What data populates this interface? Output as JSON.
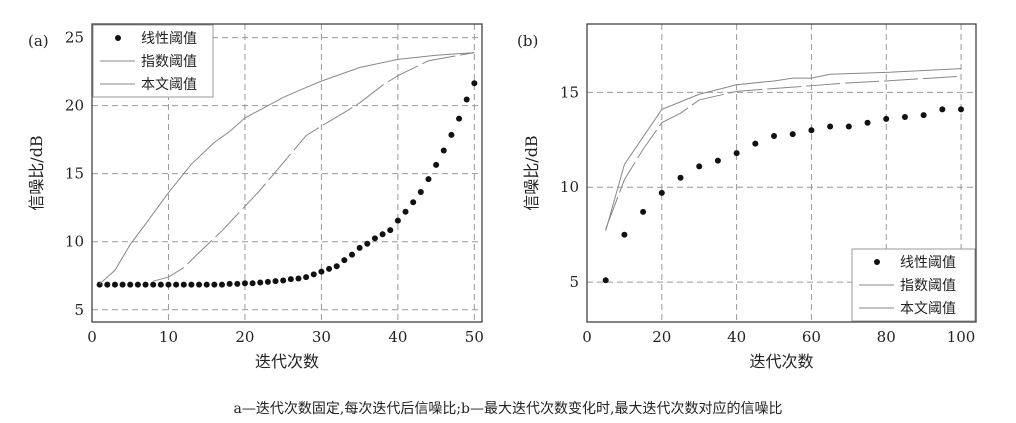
{
  "caption": "a—迭代次数固定,每次迭代后信噪比;b—最大迭代次数变化时,最大迭代次数对应的信噪比",
  "chart_data": [
    {
      "type": "line",
      "panel_label": "(a)",
      "xlabel": "迭代次数",
      "ylabel": "信噪比/dB",
      "xlim": [
        0,
        51
      ],
      "ylim": [
        4.1,
        26
      ],
      "xticks": [
        0,
        10,
        20,
        30,
        40,
        50
      ],
      "yticks": [
        5,
        10,
        15,
        20,
        25
      ],
      "grid": true,
      "legend": "top-left",
      "series": [
        {
          "name": "线性阈值",
          "style": "points",
          "x": [
            1,
            2,
            3,
            4,
            5,
            6,
            7,
            8,
            9,
            10,
            11,
            12,
            13,
            14,
            15,
            16,
            17,
            18,
            19,
            20,
            21,
            22,
            23,
            24,
            25,
            26,
            27,
            28,
            29,
            30,
            31,
            32,
            33,
            34,
            35,
            36,
            37,
            38,
            39,
            40,
            41,
            42,
            43,
            44,
            45,
            46,
            47,
            48,
            49,
            50
          ],
          "y": [
            6.85,
            6.85,
            6.85,
            6.85,
            6.85,
            6.85,
            6.85,
            6.85,
            6.85,
            6.85,
            6.85,
            6.85,
            6.85,
            6.85,
            6.85,
            6.85,
            6.85,
            6.9,
            6.9,
            6.95,
            6.95,
            7.0,
            7.05,
            7.1,
            7.15,
            7.25,
            7.3,
            7.4,
            7.6,
            7.8,
            8.0,
            8.2,
            8.65,
            9.05,
            9.55,
            9.85,
            10.25,
            10.55,
            10.85,
            11.55,
            12.2,
            12.9,
            13.65,
            14.6,
            15.65,
            16.7,
            17.85,
            19.05,
            20.45,
            21.65
          ]
        },
        {
          "name": "指数阈值",
          "style": "solid",
          "x": [
            1,
            3,
            5,
            7,
            10,
            13,
            16,
            18,
            20,
            23,
            25,
            27,
            30,
            35,
            40,
            45,
            50
          ],
          "y": [
            6.9,
            7.9,
            9.8,
            11.3,
            13.6,
            15.7,
            17.3,
            18.1,
            19.1,
            20.0,
            20.6,
            21.1,
            21.8,
            22.8,
            23.4,
            23.7,
            23.9
          ]
        },
        {
          "name": "本文阈值",
          "style": "dashed",
          "x": [
            8,
            10,
            12,
            14,
            17,
            20,
            22,
            25,
            28,
            30,
            33,
            35,
            38,
            40,
            44,
            47,
            50
          ],
          "y": [
            7.1,
            7.4,
            8.1,
            9.2,
            10.8,
            12.6,
            13.8,
            15.8,
            17.8,
            18.5,
            19.5,
            20.2,
            21.5,
            22.2,
            23.3,
            23.6,
            23.9
          ]
        }
      ]
    },
    {
      "type": "line",
      "panel_label": "(b)",
      "xlabel": "迭代次数",
      "ylabel": "信噪比/dB",
      "xlim": [
        0,
        104
      ],
      "ylim": [
        2.9,
        18.6
      ],
      "xticks": [
        0,
        20,
        40,
        60,
        80,
        100
      ],
      "yticks": [
        5,
        10,
        15
      ],
      "grid": true,
      "legend": "bottom-right",
      "series": [
        {
          "name": "线性阈值",
          "style": "points",
          "x": [
            5,
            10,
            15,
            20,
            25,
            30,
            35,
            40,
            45,
            50,
            55,
            60,
            65,
            70,
            75,
            80,
            85,
            90,
            95,
            100
          ],
          "y": [
            5.1,
            7.5,
            8.7,
            9.7,
            10.5,
            11.1,
            11.4,
            11.8,
            12.3,
            12.7,
            12.8,
            13.0,
            13.2,
            13.2,
            13.4,
            13.6,
            13.7,
            13.8,
            14.1,
            14.1
          ]
        },
        {
          "name": "指数阈值",
          "style": "solid",
          "x": [
            5,
            10,
            20,
            30,
            40,
            50,
            55,
            60,
            65,
            80,
            100
          ],
          "y": [
            7.7,
            11.2,
            14.1,
            14.9,
            15.4,
            15.6,
            15.75,
            15.75,
            15.95,
            16.05,
            16.25
          ]
        },
        {
          "name": "本文阈值",
          "style": "dashed",
          "x": [
            5,
            10,
            15,
            20,
            25,
            30,
            40,
            50,
            60,
            70,
            80,
            100
          ],
          "y": [
            7.8,
            10.4,
            12.0,
            13.4,
            13.9,
            14.6,
            15.05,
            15.2,
            15.35,
            15.5,
            15.6,
            15.85
          ]
        }
      ]
    }
  ]
}
